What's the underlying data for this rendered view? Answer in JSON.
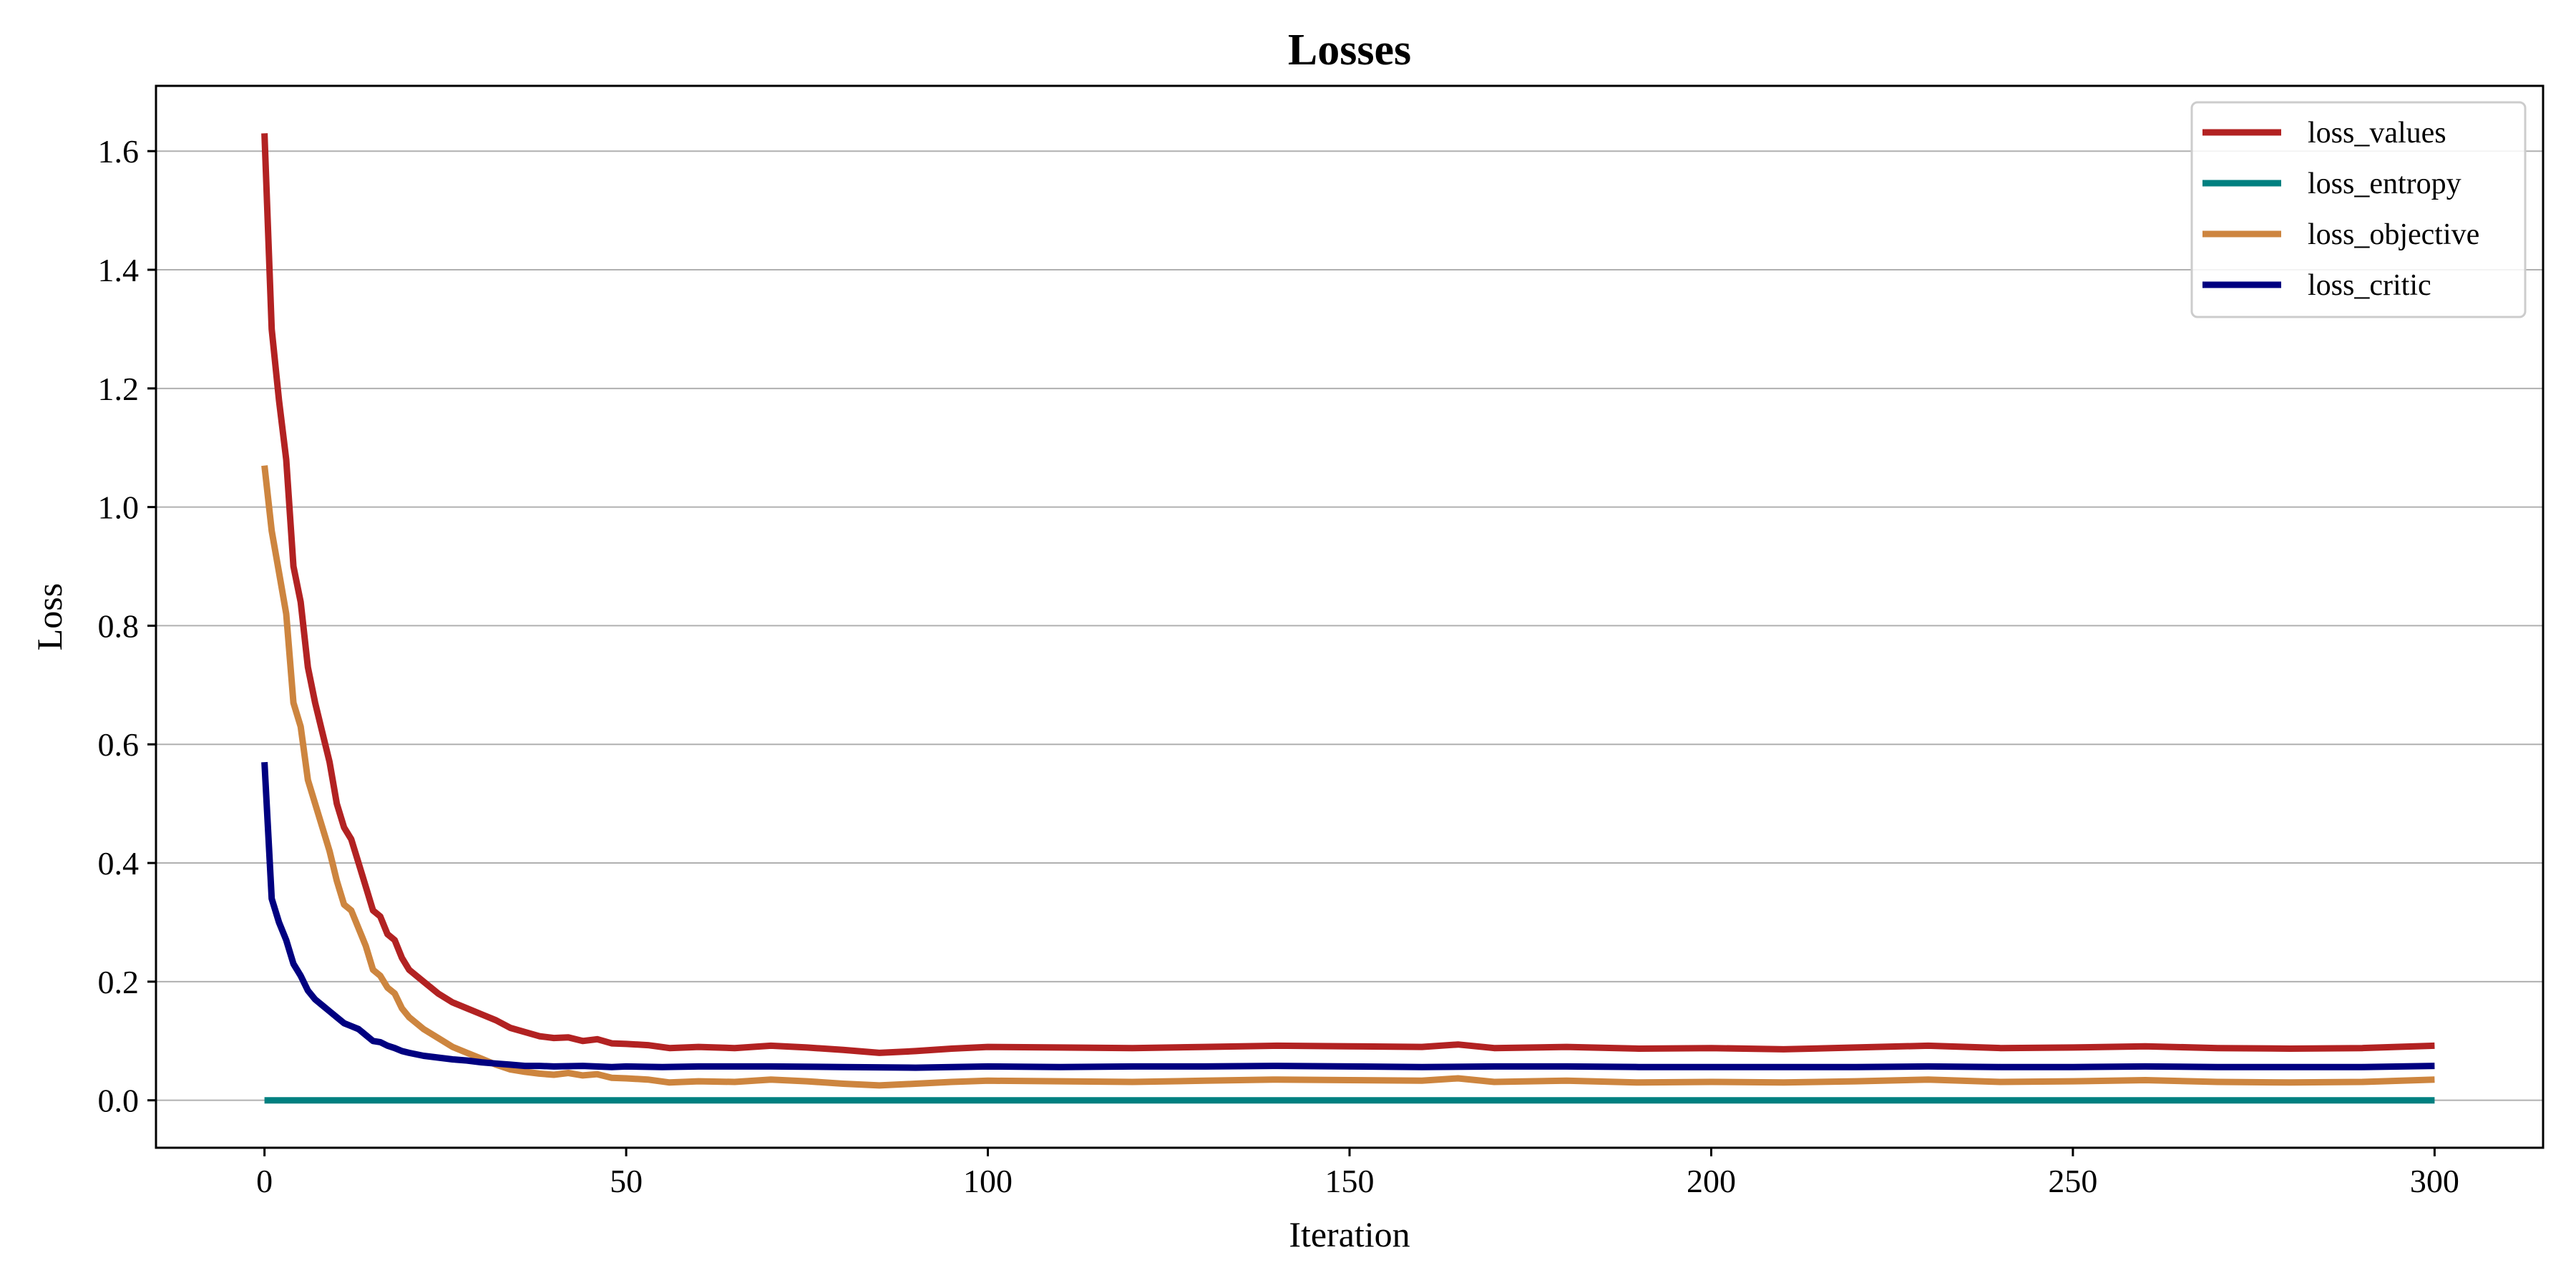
{
  "chart_data": {
    "type": "line",
    "title": "Losses",
    "xlabel": "Iteration",
    "ylabel": "Loss",
    "xlim": [
      -15,
      315
    ],
    "ylim": [
      -0.08,
      1.71
    ],
    "xticks": [
      0,
      50,
      100,
      150,
      200,
      250,
      300
    ],
    "yticks": [
      0.0,
      0.2,
      0.4,
      0.6,
      0.8,
      1.0,
      1.2,
      1.4,
      1.6
    ],
    "xtick_labels": [
      "0",
      "50",
      "100",
      "150",
      "200",
      "250",
      "300"
    ],
    "ytick_labels": [
      "0.0",
      "0.2",
      "0.4",
      "0.6",
      "0.8",
      "1.0",
      "1.2",
      "1.4",
      "1.6"
    ],
    "grid": "horizontal",
    "legend_position": "top-right",
    "series": [
      {
        "name": "loss_values",
        "color": "#b22222",
        "points": [
          [
            0,
            1.63
          ],
          [
            1,
            1.3
          ],
          [
            2,
            1.18
          ],
          [
            3,
            1.08
          ],
          [
            4,
            0.9
          ],
          [
            5,
            0.84
          ],
          [
            6,
            0.73
          ],
          [
            7,
            0.67
          ],
          [
            8,
            0.62
          ],
          [
            9,
            0.57
          ],
          [
            10,
            0.5
          ],
          [
            11,
            0.46
          ],
          [
            12,
            0.44
          ],
          [
            13,
            0.4
          ],
          [
            14,
            0.36
          ],
          [
            15,
            0.32
          ],
          [
            16,
            0.31
          ],
          [
            17,
            0.28
          ],
          [
            18,
            0.27
          ],
          [
            19,
            0.24
          ],
          [
            20,
            0.22
          ],
          [
            22,
            0.2
          ],
          [
            24,
            0.18
          ],
          [
            26,
            0.165
          ],
          [
            28,
            0.155
          ],
          [
            30,
            0.145
          ],
          [
            32,
            0.135
          ],
          [
            34,
            0.122
          ],
          [
            36,
            0.115
          ],
          [
            38,
            0.108
          ],
          [
            40,
            0.105
          ],
          [
            42,
            0.106
          ],
          [
            44,
            0.1
          ],
          [
            46,
            0.103
          ],
          [
            48,
            0.096
          ],
          [
            50,
            0.095
          ],
          [
            53,
            0.093
          ],
          [
            56,
            0.088
          ],
          [
            60,
            0.09
          ],
          [
            65,
            0.088
          ],
          [
            70,
            0.092
          ],
          [
            75,
            0.089
          ],
          [
            80,
            0.085
          ],
          [
            85,
            0.08
          ],
          [
            90,
            0.083
          ],
          [
            95,
            0.087
          ],
          [
            100,
            0.09
          ],
          [
            110,
            0.089
          ],
          [
            120,
            0.088
          ],
          [
            130,
            0.09
          ],
          [
            140,
            0.092
          ],
          [
            150,
            0.091
          ],
          [
            160,
            0.09
          ],
          [
            165,
            0.094
          ],
          [
            170,
            0.088
          ],
          [
            180,
            0.09
          ],
          [
            190,
            0.087
          ],
          [
            200,
            0.088
          ],
          [
            210,
            0.086
          ],
          [
            220,
            0.089
          ],
          [
            230,
            0.092
          ],
          [
            240,
            0.088
          ],
          [
            250,
            0.089
          ],
          [
            260,
            0.091
          ],
          [
            270,
            0.088
          ],
          [
            280,
            0.087
          ],
          [
            290,
            0.088
          ],
          [
            300,
            0.092
          ]
        ]
      },
      {
        "name": "loss_entropy",
        "color": "#008080",
        "points": [
          [
            0,
            0.0
          ],
          [
            300,
            0.0
          ]
        ]
      },
      {
        "name": "loss_objective",
        "color": "#cd853f",
        "points": [
          [
            0,
            1.07
          ],
          [
            1,
            0.96
          ],
          [
            2,
            0.89
          ],
          [
            3,
            0.82
          ],
          [
            4,
            0.67
          ],
          [
            5,
            0.63
          ],
          [
            6,
            0.54
          ],
          [
            7,
            0.5
          ],
          [
            8,
            0.46
          ],
          [
            9,
            0.42
          ],
          [
            10,
            0.37
          ],
          [
            11,
            0.33
          ],
          [
            12,
            0.32
          ],
          [
            13,
            0.29
          ],
          [
            14,
            0.26
          ],
          [
            15,
            0.22
          ],
          [
            16,
            0.21
          ],
          [
            17,
            0.19
          ],
          [
            18,
            0.18
          ],
          [
            19,
            0.155
          ],
          [
            20,
            0.14
          ],
          [
            22,
            0.12
          ],
          [
            24,
            0.105
          ],
          [
            26,
            0.09
          ],
          [
            28,
            0.08
          ],
          [
            30,
            0.07
          ],
          [
            32,
            0.06
          ],
          [
            34,
            0.052
          ],
          [
            36,
            0.048
          ],
          [
            38,
            0.045
          ],
          [
            40,
            0.043
          ],
          [
            42,
            0.046
          ],
          [
            44,
            0.042
          ],
          [
            46,
            0.044
          ],
          [
            48,
            0.038
          ],
          [
            50,
            0.037
          ],
          [
            53,
            0.035
          ],
          [
            56,
            0.03
          ],
          [
            60,
            0.032
          ],
          [
            65,
            0.031
          ],
          [
            70,
            0.035
          ],
          [
            75,
            0.032
          ],
          [
            80,
            0.028
          ],
          [
            85,
            0.025
          ],
          [
            90,
            0.028
          ],
          [
            95,
            0.031
          ],
          [
            100,
            0.033
          ],
          [
            110,
            0.032
          ],
          [
            120,
            0.031
          ],
          [
            130,
            0.033
          ],
          [
            140,
            0.035
          ],
          [
            150,
            0.034
          ],
          [
            160,
            0.033
          ],
          [
            165,
            0.037
          ],
          [
            170,
            0.031
          ],
          [
            180,
            0.033
          ],
          [
            190,
            0.03
          ],
          [
            200,
            0.031
          ],
          [
            210,
            0.03
          ],
          [
            220,
            0.032
          ],
          [
            230,
            0.035
          ],
          [
            240,
            0.031
          ],
          [
            250,
            0.032
          ],
          [
            260,
            0.034
          ],
          [
            270,
            0.031
          ],
          [
            280,
            0.03
          ],
          [
            290,
            0.031
          ],
          [
            300,
            0.035
          ]
        ]
      },
      {
        "name": "loss_critic",
        "color": "#000080",
        "points": [
          [
            0,
            0.57
          ],
          [
            1,
            0.34
          ],
          [
            2,
            0.3
          ],
          [
            3,
            0.27
          ],
          [
            4,
            0.23
          ],
          [
            5,
            0.21
          ],
          [
            6,
            0.185
          ],
          [
            7,
            0.17
          ],
          [
            8,
            0.16
          ],
          [
            9,
            0.15
          ],
          [
            10,
            0.14
          ],
          [
            11,
            0.13
          ],
          [
            12,
            0.125
          ],
          [
            13,
            0.12
          ],
          [
            14,
            0.11
          ],
          [
            15,
            0.1
          ],
          [
            16,
            0.098
          ],
          [
            17,
            0.092
          ],
          [
            18,
            0.088
          ],
          [
            19,
            0.083
          ],
          [
            20,
            0.08
          ],
          [
            22,
            0.075
          ],
          [
            24,
            0.072
          ],
          [
            26,
            0.069
          ],
          [
            28,
            0.067
          ],
          [
            30,
            0.064
          ],
          [
            32,
            0.062
          ],
          [
            34,
            0.06
          ],
          [
            36,
            0.058
          ],
          [
            38,
            0.058
          ],
          [
            40,
            0.057
          ],
          [
            44,
            0.058
          ],
          [
            48,
            0.056
          ],
          [
            50,
            0.057
          ],
          [
            55,
            0.056
          ],
          [
            60,
            0.057
          ],
          [
            70,
            0.057
          ],
          [
            80,
            0.056
          ],
          [
            90,
            0.055
          ],
          [
            100,
            0.057
          ],
          [
            110,
            0.056
          ],
          [
            120,
            0.057
          ],
          [
            130,
            0.057
          ],
          [
            140,
            0.058
          ],
          [
            150,
            0.057
          ],
          [
            160,
            0.056
          ],
          [
            170,
            0.057
          ],
          [
            180,
            0.057
          ],
          [
            190,
            0.056
          ],
          [
            200,
            0.056
          ],
          [
            210,
            0.056
          ],
          [
            220,
            0.056
          ],
          [
            230,
            0.057
          ],
          [
            240,
            0.056
          ],
          [
            250,
            0.056
          ],
          [
            260,
            0.057
          ],
          [
            270,
            0.056
          ],
          [
            280,
            0.056
          ],
          [
            290,
            0.056
          ],
          [
            300,
            0.058
          ]
        ]
      }
    ]
  }
}
